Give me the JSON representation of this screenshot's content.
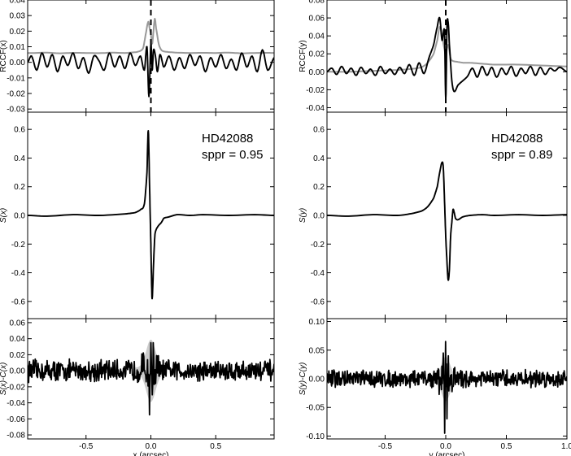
{
  "chart_data": [
    {
      "type": "line",
      "panel": "left-rccf",
      "xlim": [
        -0.95,
        0.95
      ],
      "ylim": [
        -0.032,
        0.04
      ],
      "ylabel": "RCCF(x)",
      "yticks": [
        -0.03,
        -0.02,
        -0.01,
        0.0,
        0.01,
        0.02,
        0.03,
        0.04
      ],
      "ytick_labels": [
        "-0.03",
        "-0.02",
        "-0.01",
        "0.00",
        "0.01",
        "0.02",
        "0.03",
        "0.04"
      ],
      "vline_x": 0.0,
      "series": [
        {
          "color": "#999999",
          "x": [
            -0.95,
            -0.9,
            -0.8,
            -0.7,
            -0.6,
            -0.5,
            -0.4,
            -0.3,
            -0.2,
            -0.15,
            -0.1,
            -0.06,
            -0.04,
            -0.02,
            -0.01,
            0.0,
            0.01,
            0.02,
            0.03,
            0.04,
            0.06,
            0.08,
            0.1,
            0.15,
            0.2,
            0.3,
            0.4,
            0.5,
            0.6,
            0.7,
            0.8,
            0.9,
            0.95
          ],
          "y": [
            0.006,
            0.006,
            0.0062,
            0.0058,
            0.0061,
            0.006,
            0.0059,
            0.0062,
            0.006,
            0.0063,
            0.0068,
            0.009,
            0.018,
            0.026,
            0.022,
            0.018,
            0.012,
            0.02,
            0.028,
            0.022,
            0.012,
            0.008,
            0.007,
            0.0065,
            0.0062,
            0.006,
            0.0061,
            0.006,
            0.0062,
            0.0058,
            0.006,
            0.0061,
            0.006
          ]
        },
        {
          "color": "#000000",
          "x": [
            -0.95,
            -0.92,
            -0.88,
            -0.84,
            -0.8,
            -0.76,
            -0.72,
            -0.68,
            -0.64,
            -0.6,
            -0.56,
            -0.52,
            -0.48,
            -0.44,
            -0.4,
            -0.36,
            -0.32,
            -0.28,
            -0.24,
            -0.2,
            -0.16,
            -0.12,
            -0.08,
            -0.05,
            -0.03,
            -0.015,
            0.0,
            0.01,
            0.02,
            0.035,
            0.05,
            0.07,
            0.1,
            0.14,
            0.18,
            0.22,
            0.26,
            0.3,
            0.34,
            0.38,
            0.42,
            0.46,
            0.5,
            0.54,
            0.58,
            0.62,
            0.66,
            0.7,
            0.74,
            0.78,
            0.82,
            0.86,
            0.9,
            0.95
          ],
          "y": [
            0.0,
            0.004,
            -0.005,
            0.006,
            -0.003,
            0.005,
            -0.006,
            0.004,
            -0.002,
            0.006,
            -0.004,
            0.003,
            -0.007,
            0.004,
            0.001,
            -0.005,
            0.006,
            -0.003,
            0.004,
            -0.004,
            0.006,
            -0.002,
            0.004,
            -0.005,
            0.01,
            -0.022,
            0.012,
            -0.005,
            0.008,
            0.004,
            -0.006,
            0.005,
            -0.003,
            0.004,
            -0.005,
            0.003,
            -0.004,
            0.005,
            -0.002,
            0.004,
            -0.006,
            0.003,
            -0.003,
            0.005,
            -0.004,
            0.002,
            -0.005,
            0.006,
            -0.003,
            0.004,
            -0.006,
            0.008,
            -0.005,
            0.003
          ]
        }
      ]
    },
    {
      "type": "line",
      "panel": "left-s",
      "xlim": [
        -0.95,
        0.95
      ],
      "ylim": [
        -0.72,
        0.72
      ],
      "ylabel": "S(x)",
      "yticks": [
        -0.6,
        -0.4,
        -0.2,
        0.0,
        0.2,
        0.4,
        0.6
      ],
      "ytick_labels": [
        "-0.6",
        "-0.4",
        "-0.2",
        "0.0",
        "0.2",
        "0.4",
        "0.6"
      ],
      "annotations": [
        "HD42088",
        "sppr = 0.95"
      ],
      "series": [
        {
          "color": "#000000",
          "x": [
            -0.95,
            -0.8,
            -0.6,
            -0.4,
            -0.2,
            -0.12,
            -0.08,
            -0.05,
            -0.03,
            -0.02,
            -0.01,
            0.0,
            0.005,
            0.01,
            0.02,
            0.03,
            0.04,
            0.06,
            0.08,
            0.1,
            0.14,
            0.2,
            0.3,
            0.4,
            0.6,
            0.8,
            0.95
          ],
          "y": [
            0.0,
            -0.005,
            0.005,
            0.0,
            0.01,
            0.02,
            0.04,
            0.08,
            0.3,
            0.59,
            0.2,
            -0.2,
            -0.45,
            -0.58,
            -0.35,
            -0.15,
            -0.1,
            -0.07,
            -0.05,
            -0.02,
            -0.01,
            0.005,
            0.0,
            0.005,
            0.0,
            0.005,
            0.0
          ]
        }
      ]
    },
    {
      "type": "line",
      "panel": "left-residual",
      "xlim": [
        -0.95,
        0.95
      ],
      "ylim": [
        -0.085,
        0.065
      ],
      "ylabel": "S(x)-C(x)",
      "xlabel": "x (arcsec)",
      "yticks": [
        -0.08,
        -0.06,
        -0.04,
        -0.02,
        0.0,
        0.02,
        0.04,
        0.06
      ],
      "ytick_labels": [
        "-0.08",
        "-0.06",
        "-0.04",
        "-0.02",
        "0.00",
        "0.02",
        "0.04",
        "0.06"
      ],
      "xticks": [
        -0.5,
        0.0,
        0.5
      ],
      "xtick_labels": [
        "-0.5",
        "0.0",
        "0.5"
      ],
      "noise_amplitude": 0.011,
      "central_spike": {
        "x": [
          -0.01,
          0.0,
          0.01,
          0.02
        ],
        "y": [
          -0.055,
          0.035,
          -0.03,
          0.035
        ]
      }
    },
    {
      "type": "line",
      "panel": "right-rccf",
      "xlim": [
        -0.98,
        1.0
      ],
      "ylim": [
        -0.045,
        0.08
      ],
      "ylabel": "RCCF(y)",
      "yticks": [
        -0.04,
        -0.02,
        0.0,
        0.02,
        0.04,
        0.06,
        0.08
      ],
      "ytick_labels": [
        "-0.04",
        "-0.02",
        "0.00",
        "0.02",
        "0.04",
        "0.06",
        "0.08"
      ],
      "vline_x": 0.0,
      "series": [
        {
          "color": "#999999",
          "x": [
            -0.98,
            -0.8,
            -0.6,
            -0.4,
            -0.3,
            -0.2,
            -0.15,
            -0.1,
            -0.07,
            -0.05,
            -0.03,
            -0.01,
            0.0,
            0.02,
            0.04,
            0.06,
            0.1,
            0.15,
            0.2,
            0.3,
            0.4,
            0.6,
            0.8,
            1.0
          ],
          "y": [
            0.0,
            0.0,
            0.001,
            0.002,
            0.003,
            0.005,
            0.01,
            0.02,
            0.035,
            0.05,
            0.04,
            0.025,
            0.02,
            0.03,
            0.015,
            0.012,
            0.011,
            0.01,
            0.01,
            0.009,
            0.008,
            0.008,
            0.007,
            0.006
          ]
        },
        {
          "color": "#000000",
          "x": [
            -0.98,
            -0.94,
            -0.9,
            -0.86,
            -0.82,
            -0.78,
            -0.74,
            -0.7,
            -0.66,
            -0.62,
            -0.58,
            -0.54,
            -0.5,
            -0.46,
            -0.42,
            -0.38,
            -0.34,
            -0.3,
            -0.26,
            -0.22,
            -0.18,
            -0.14,
            -0.1,
            -0.07,
            -0.05,
            -0.03,
            -0.01,
            0.0,
            0.01,
            0.02,
            0.03,
            0.05,
            0.07,
            0.1,
            0.14,
            0.18,
            0.22,
            0.26,
            0.3,
            0.34,
            0.38,
            0.42,
            0.46,
            0.5,
            0.54,
            0.58,
            0.62,
            0.66,
            0.7,
            0.74,
            0.78,
            0.82,
            0.86,
            0.9,
            0.94,
            1.0
          ],
          "y": [
            0.0,
            0.004,
            -0.003,
            0.006,
            -0.002,
            0.004,
            -0.004,
            0.005,
            -0.002,
            0.003,
            -0.004,
            0.006,
            -0.002,
            0.003,
            -0.003,
            0.005,
            -0.002,
            0.008,
            -0.004,
            0.01,
            -0.002,
            0.015,
            0.03,
            0.05,
            0.06,
            0.035,
            0.045,
            -0.03,
            0.05,
            0.055,
            0.03,
            -0.01,
            -0.022,
            -0.015,
            -0.01,
            -0.005,
            0.004,
            -0.006,
            0.006,
            -0.004,
            0.005,
            -0.006,
            0.004,
            -0.003,
            0.006,
            -0.005,
            0.004,
            -0.002,
            0.006,
            -0.004,
            0.005,
            -0.003,
            0.004,
            0.001,
            0.005,
            0.0
          ]
        }
      ]
    },
    {
      "type": "line",
      "panel": "right-s",
      "xlim": [
        -0.98,
        1.0
      ],
      "ylim": [
        -0.72,
        0.72
      ],
      "ylabel": "S(y)",
      "yticks": [
        -0.6,
        -0.4,
        -0.2,
        0.0,
        0.2,
        0.4,
        0.6
      ],
      "ytick_labels": [
        "-0.6",
        "-0.4",
        "-0.2",
        "0.0",
        "0.2",
        "0.4",
        "0.6"
      ],
      "annotations": [
        "HD42088",
        "sppr = 0.89"
      ],
      "series": [
        {
          "color": "#000000",
          "x": [
            -0.98,
            -0.8,
            -0.6,
            -0.4,
            -0.3,
            -0.2,
            -0.15,
            -0.1,
            -0.07,
            -0.05,
            -0.03,
            -0.02,
            -0.01,
            0.0,
            0.01,
            0.02,
            0.03,
            0.04,
            0.05,
            0.06,
            0.07,
            0.08,
            0.1,
            0.14,
            0.2,
            0.3,
            0.4,
            0.6,
            0.8,
            1.0
          ],
          "y": [
            0.0,
            -0.005,
            0.005,
            0.0,
            0.01,
            0.03,
            0.06,
            0.12,
            0.2,
            0.3,
            0.37,
            0.33,
            0.1,
            -0.15,
            -0.32,
            -0.45,
            -0.38,
            -0.15,
            -0.05,
            0.04,
            0.02,
            -0.02,
            -0.03,
            -0.01,
            0.0,
            0.005,
            0.0,
            0.005,
            0.0,
            0.005
          ]
        }
      ]
    },
    {
      "type": "line",
      "panel": "right-residual",
      "xlim": [
        -0.98,
        1.0
      ],
      "ylim": [
        -0.105,
        0.105
      ],
      "ylabel": "S(y)-C(y)",
      "xlabel": "y (arcsec)",
      "yticks": [
        -0.1,
        -0.05,
        0.0,
        0.05,
        0.1
      ],
      "ytick_labels": [
        "-0.10",
        "-0.05",
        "0.00",
        "0.05",
        "0.10"
      ],
      "xticks": [
        -0.5,
        0.0,
        0.5,
        1.0
      ],
      "xtick_labels": [
        "-0.5",
        "0.0",
        "0.5",
        "1.0"
      ],
      "noise_amplitude": 0.012,
      "central_spike": {
        "x": [
          -0.02,
          -0.01,
          0.0,
          0.01,
          0.02
        ],
        "y": [
          0.045,
          -0.095,
          0.065,
          -0.07,
          0.04
        ]
      }
    }
  ]
}
